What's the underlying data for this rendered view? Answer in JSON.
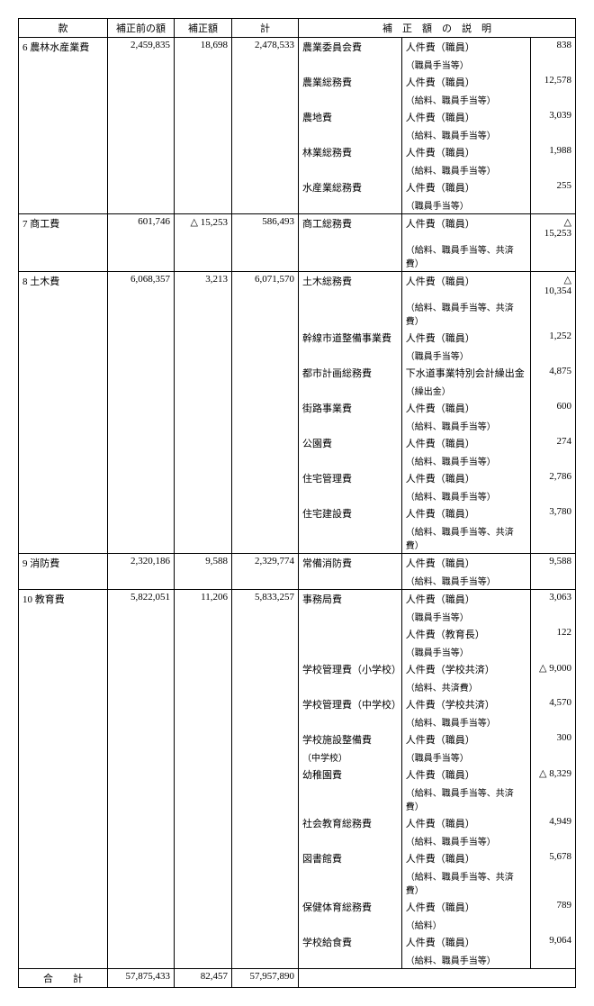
{
  "headers": {
    "item": "款",
    "before": "補正前の額",
    "correction": "補正額",
    "total": "計",
    "explanation": "補　正　額　の　説　明"
  },
  "rows": [
    {
      "no": "6",
      "name": "農林水産業費",
      "before": "2,459,835",
      "corr": "18,698",
      "total": "2,478,533",
      "details": [
        {
          "cat": "農業委員会費",
          "desc": "人件費（職員）",
          "sub": "（職員手当等）",
          "amt": "838"
        },
        {
          "cat": "農業総務費",
          "desc": "人件費（職員）",
          "sub": "（給料、職員手当等）",
          "amt": "12,578"
        },
        {
          "cat": "農地費",
          "desc": "人件費（職員）",
          "sub": "（給料、職員手当等）",
          "amt": "3,039"
        },
        {
          "cat": "林業総務費",
          "desc": "人件費（職員）",
          "sub": "（給料、職員手当等）",
          "amt": "1,988"
        },
        {
          "cat": "水産業総務費",
          "desc": "人件費（職員）",
          "sub": "（職員手当等）",
          "amt": "255"
        }
      ]
    },
    {
      "no": "7",
      "name": "商工費",
      "before": "601,746",
      "corr": "△ 15,253",
      "total": "586,493",
      "details": [
        {
          "cat": "商工総務費",
          "desc": "人件費（職員）",
          "sub": "（給料、職員手当等、共済費）",
          "amt": "△ 15,253"
        }
      ]
    },
    {
      "no": "8",
      "name": "土木費",
      "before": "6,068,357",
      "corr": "3,213",
      "total": "6,071,570",
      "details": [
        {
          "cat": "土木総務費",
          "desc": "人件費（職員）",
          "sub": "（給料、職員手当等、共済費）",
          "amt": "△ 10,354"
        },
        {
          "cat": "幹線市道整備事業費",
          "desc": "人件費（職員）",
          "sub": "（職員手当等）",
          "amt": "1,252"
        },
        {
          "cat": "都市計画総務費",
          "desc": "下水道事業特別会計繰出金",
          "sub": "（繰出金）",
          "amt": "4,875"
        },
        {
          "cat": "街路事業費",
          "desc": "人件費（職員）",
          "sub": "（給料、職員手当等）",
          "amt": "600"
        },
        {
          "cat": "公園費",
          "desc": "人件費（職員）",
          "sub": "（給料、職員手当等）",
          "amt": "274"
        },
        {
          "cat": "住宅管理費",
          "desc": "人件費（職員）",
          "sub": "（給料、職員手当等）",
          "amt": "2,786"
        },
        {
          "cat": "住宅建設費",
          "desc": "人件費（職員）",
          "sub": "（給料、職員手当等、共済費）",
          "amt": "3,780"
        }
      ]
    },
    {
      "no": "9",
      "name": "消防費",
      "before": "2,320,186",
      "corr": "9,588",
      "total": "2,329,774",
      "details": [
        {
          "cat": "常備消防費",
          "desc": "人件費（職員）",
          "sub": "（給料、職員手当等）",
          "amt": "9,588"
        }
      ]
    },
    {
      "no": "10",
      "name": "教育費",
      "before": "5,822,051",
      "corr": "11,206",
      "total": "5,833,257",
      "details": [
        {
          "cat": "事務局費",
          "desc": "人件費（職員）",
          "sub": "（職員手当等）",
          "amt": "3,063"
        },
        {
          "cat": "",
          "desc": "人件費（教育長）",
          "sub": "（職員手当等）",
          "amt": "122"
        },
        {
          "cat": "学校管理費（小学校）",
          "desc": "人件費（学校共済）",
          "sub": "（給料、共済費）",
          "amt": "△ 9,000"
        },
        {
          "cat": "学校管理費（中学校）",
          "desc": "人件費（学校共済）",
          "sub": "（給料、職員手当等）",
          "amt": "4,570"
        },
        {
          "cat": "学校施設整備費",
          "cat2": "（中学校）",
          "desc": "人件費（職員）",
          "sub": "（職員手当等）",
          "amt": "300"
        },
        {
          "cat": "幼稚園費",
          "desc": "人件費（職員）",
          "sub": "（給料、職員手当等、共済費）",
          "amt": "△ 8,329"
        },
        {
          "cat": "社会教育総務費",
          "desc": "人件費（職員）",
          "sub": "（給料、職員手当等）",
          "amt": "4,949"
        },
        {
          "cat": "図書館費",
          "desc": "人件費（職員）",
          "sub": "（給料、職員手当等、共済費）",
          "amt": "5,678"
        },
        {
          "cat": "保健体育総務費",
          "desc": "人件費（職員）",
          "sub": "（給料）",
          "amt": "789"
        },
        {
          "cat": "学校給食費",
          "desc": "人件費（職員）",
          "sub": "（給料、職員手当等）",
          "amt": "9,064"
        }
      ]
    }
  ],
  "totals": {
    "label": "合　　計",
    "before": "57,875,433",
    "corr": "82,457",
    "total": "57,957,890"
  },
  "style": {
    "font_family": "MS Mincho",
    "font_size_pt": 11,
    "border_color": "#000000",
    "background": "#ffffff",
    "text_color": "#000000",
    "triangle": "△"
  }
}
